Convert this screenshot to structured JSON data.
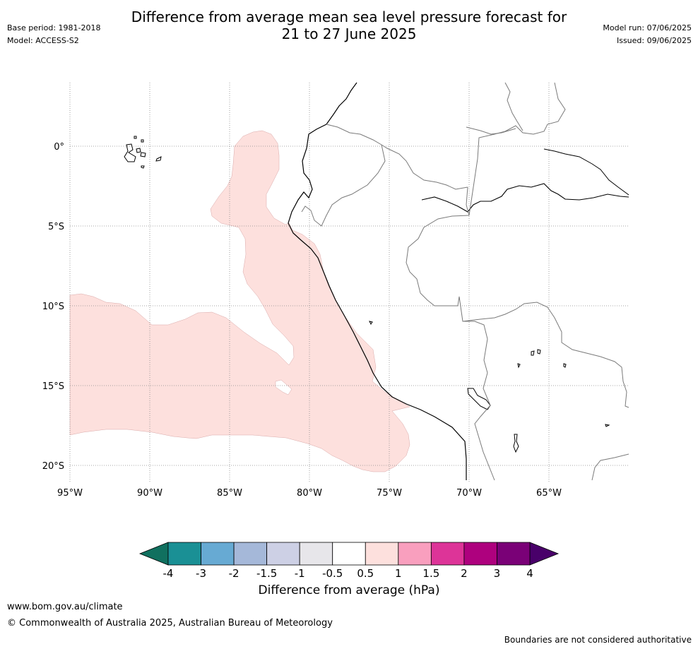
{
  "header": {
    "title_line1": "Difference from average mean sea level pressure forecast for",
    "title_line2": "21 to 27 June 2025",
    "base_period": "Base period: 1981-2018",
    "model": "Model: ACCESS-S2",
    "model_run": "Model run: 07/06/2025",
    "issued": "Issued: 09/06/2025"
  },
  "map": {
    "region": "Southeast Pacific / western South America",
    "lon_range": [
      -95,
      -60
    ],
    "lat_range": [
      -21,
      4
    ],
    "lat_ticks": [
      {
        "value": 0,
        "label": "0°"
      },
      {
        "value": -5,
        "label": "5°S"
      },
      {
        "value": -10,
        "label": "10°S"
      },
      {
        "value": -15,
        "label": "15°S"
      },
      {
        "value": -20,
        "label": "20°S"
      }
    ],
    "lon_ticks": [
      {
        "value": -95,
        "label": "95°W"
      },
      {
        "value": -90,
        "label": "90°W"
      },
      {
        "value": -85,
        "label": "85°W"
      },
      {
        "value": -80,
        "label": "80°W"
      },
      {
        "value": -75,
        "label": "75°W"
      },
      {
        "value": -70,
        "label": "70°W"
      },
      {
        "value": -65,
        "label": "65°W"
      }
    ],
    "gridlines": "dotted",
    "anomaly_shading": {
      "category": "0.5 to 1 hPa",
      "color": "#fde0dd"
    }
  },
  "colorbar": {
    "label": "Difference from average (hPa)",
    "ticks": [
      "-4",
      "-3",
      "-2",
      "-1.5",
      "-1",
      "-0.5",
      "0.5",
      "1",
      "1.5",
      "2",
      "3",
      "4"
    ],
    "under_color": "#10705f",
    "over_color": "#49006a",
    "colors": [
      "#1a9095",
      "#67aad3",
      "#a5b8d9",
      "#cdd0e5",
      "#e7e6ea",
      "#ffffff",
      "#fde0dd",
      "#f99fbe",
      "#dd3498",
      "#ae017e",
      "#7a0177"
    ]
  },
  "footer": {
    "url": "www.bom.gov.au/climate",
    "copyright": "© Commonwealth of Australia 2025, Australian Bureau of Meteorology",
    "note": "Boundaries are not considered authoritative"
  }
}
